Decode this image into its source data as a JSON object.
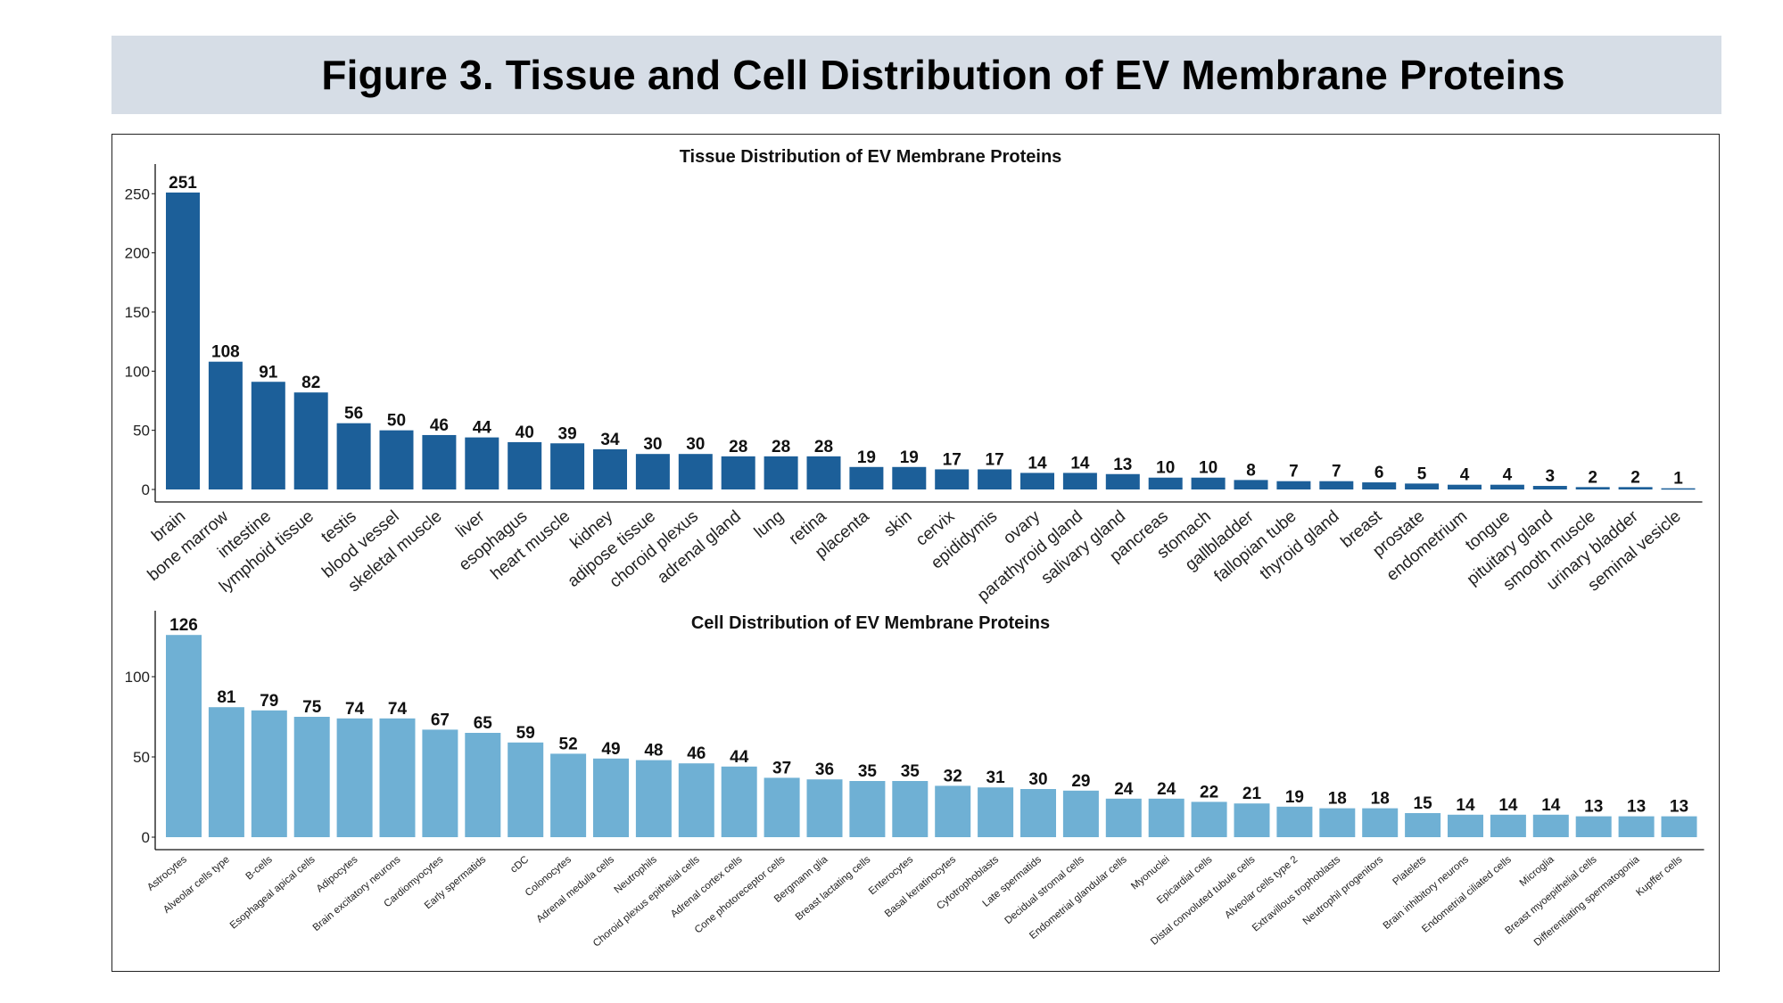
{
  "figure_title": "Figure 3. Tissue and Cell Distribution of EV Membrane Proteins",
  "colors": {
    "tissue_bar": "#1c5f99",
    "cell_bar": "#6fb0d4",
    "banner": "#d6dde6"
  },
  "chart_data": [
    {
      "type": "bar",
      "title": "Tissue Distribution of EV Membrane Proteins",
      "xlabel": "",
      "ylabel": "",
      "ylim": [
        0,
        260
      ],
      "yticks": [
        0,
        50,
        100,
        150,
        200,
        250
      ],
      "grid": false,
      "categories": [
        "brain",
        "bone marrow",
        "intestine",
        "lymphoid tissue",
        "testis",
        "blood vessel",
        "skeletal muscle",
        "liver",
        "esophagus",
        "heart muscle",
        "kidney",
        "adipose tissue",
        "choroid plexus",
        "adrenal gland",
        "lung",
        "retina",
        "placenta",
        "skin",
        "cervix",
        "epididymis",
        "ovary",
        "parathyroid gland",
        "salivary gland",
        "pancreas",
        "stomach",
        "gallbladder",
        "fallopian tube",
        "thyroid gland",
        "breast",
        "prostate",
        "endometrium",
        "tongue",
        "pituitary gland",
        "smooth muscle",
        "urinary bladder",
        "seminal vesicle"
      ],
      "values": [
        251,
        108,
        91,
        82,
        56,
        50,
        46,
        44,
        40,
        39,
        34,
        30,
        30,
        28,
        28,
        28,
        19,
        19,
        17,
        17,
        14,
        14,
        13,
        10,
        10,
        8,
        7,
        7,
        6,
        5,
        4,
        4,
        3,
        2,
        2,
        1
      ]
    },
    {
      "type": "bar",
      "title": "Cell Distribution of EV Membrane Proteins",
      "xlabel": "",
      "ylabel": "",
      "ylim": [
        0,
        130
      ],
      "yticks": [
        0,
        50,
        100
      ],
      "grid": false,
      "categories": [
        "Astrocytes",
        "Alveolar cells type",
        "B-cells",
        "Esophageal apical cells",
        "Adipocytes",
        "Brain excitatory neurons",
        "Cardiomyocytes",
        "Early spermatids",
        "cDC",
        "Colonocytes",
        "Adrenal medulla cells",
        "Neutrophils",
        "Choroid plexus epithelial cells",
        "Adrenal cortex cells",
        "Cone photoreceptor cells",
        "Bergmann glia",
        "Breast lactating cells",
        "Enterocytes",
        "Basal keratinocytes",
        "Cytotrophoblasts",
        "Late spermatids",
        "Decidual stromal cells",
        "Endometrial glandular cells",
        "Myonuclei",
        "Epicardial cells",
        "Distal convoluted tubule cells",
        "Alveolar cells type 2",
        "Extravillous trophoblasts",
        "Neutrophil progenitors",
        "Platelets",
        "Brain inhibitory neurons",
        "Endometrial ciliated cells",
        "Microglia",
        "Breast myoepithelial cells",
        "Differentiating spermatogonia",
        "Kupffer cells"
      ],
      "values": [
        126,
        81,
        79,
        75,
        74,
        74,
        67,
        65,
        59,
        52,
        49,
        48,
        46,
        44,
        37,
        36,
        35,
        35,
        32,
        31,
        30,
        29,
        24,
        24,
        22,
        21,
        19,
        18,
        18,
        15,
        14,
        14,
        14,
        13,
        13,
        13
      ]
    }
  ]
}
